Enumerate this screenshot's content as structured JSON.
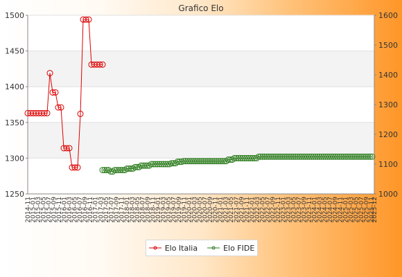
{
  "chart_data": {
    "type": "line",
    "title": "Grafico Elo",
    "x_start_label": "2014-11",
    "x_end_label": "2025-12",
    "y_left": {
      "min": 1250,
      "max": 1500,
      "ticks": [
        1250,
        1300,
        1350,
        1400,
        1450,
        1500
      ]
    },
    "y_right": {
      "min": 1000,
      "max": 1600,
      "ticks": [
        1000,
        1100,
        1200,
        1300,
        1400,
        1500,
        1600
      ]
    },
    "grid_bands": true,
    "legend_position": "bottom",
    "series": [
      {
        "name": "Elo Italia",
        "color": "#dd0000",
        "axis": "left",
        "values": [
          1363,
          1363,
          1363,
          1363,
          1363,
          1363,
          1363,
          1363,
          1419,
          1392,
          1392,
          1371,
          1371,
          1314,
          1314,
          1314,
          1287,
          1287,
          1287,
          1362,
          1494,
          1494,
          1494,
          1431,
          1431,
          1431,
          1431,
          1431
        ]
      },
      {
        "name": "Elo FIDE",
        "color": "#2e7d1f",
        "axis": "right",
        "values": [
          1080,
          1080,
          1080,
          1080,
          1075,
          1075,
          1080,
          1080,
          1080,
          1080,
          1080,
          1080,
          1085,
          1085,
          1085,
          1085,
          1090,
          1090,
          1090,
          1095,
          1095,
          1095,
          1095,
          1095,
          1100,
          1100,
          1100,
          1100,
          1100,
          1100,
          1100,
          1100,
          1100,
          1100,
          1103,
          1103,
          1103,
          1108,
          1108,
          1108,
          1110,
          1110,
          1110,
          1110,
          1110,
          1110,
          1110,
          1110,
          1110,
          1110,
          1110,
          1110,
          1110,
          1110,
          1110,
          1110,
          1110,
          1110,
          1110,
          1110,
          1110,
          1110,
          1115,
          1115,
          1115,
          1120,
          1120,
          1120,
          1120,
          1120,
          1120,
          1120,
          1120,
          1120,
          1120,
          1120,
          1120,
          1125,
          1125,
          1125,
          1125,
          1125,
          1125,
          1125,
          1125,
          1125,
          1125,
          1125,
          1125,
          1125,
          1125,
          1125,
          1125,
          1125,
          1125,
          1125,
          1125,
          1125,
          1125,
          1125,
          1125,
          1125,
          1125,
          1125,
          1125,
          1125,
          1125,
          1125,
          1125,
          1125,
          1125,
          1125,
          1125,
          1125,
          1125,
          1125,
          1125,
          1125,
          1125,
          1125,
          1125,
          1125,
          1125,
          1125,
          1125,
          1125,
          1125,
          1125,
          1125,
          1125,
          1125,
          1125,
          1125,
          1125
        ]
      }
    ]
  }
}
